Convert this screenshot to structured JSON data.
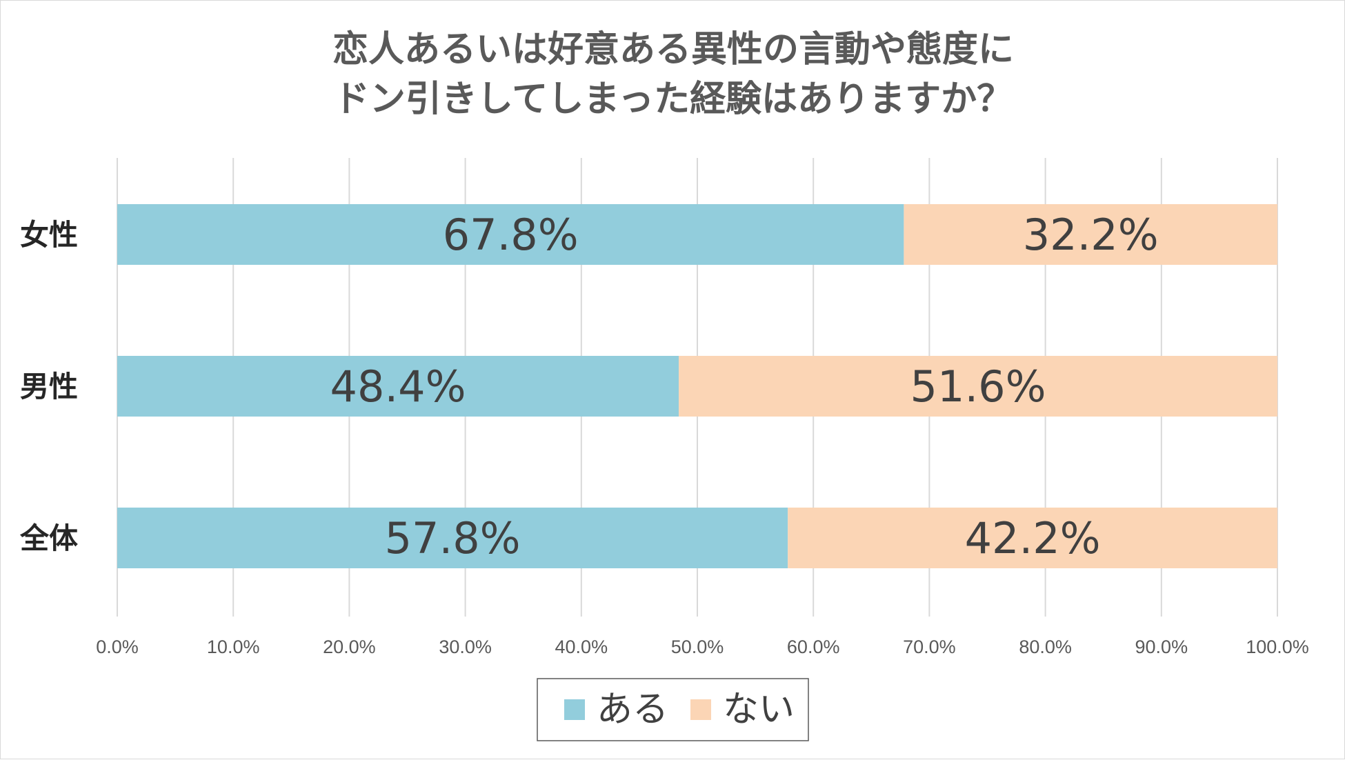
{
  "chart_data": {
    "type": "bar",
    "orientation": "horizontal",
    "stacked": true,
    "title_lines": [
      "恋人あるいは好意ある異性の言動や態度に",
      "ドン引きしてしまった経験はありますか？"
    ],
    "categories": [
      "女性",
      "男性",
      "全体"
    ],
    "series": [
      {
        "name": "ある",
        "color": "#92cddc",
        "values": [
          67.8,
          48.4,
          57.8
        ],
        "labels": [
          "67.8%",
          "48.4%",
          "57.8%"
        ]
      },
      {
        "name": "ない",
        "color": "#fbd5b5",
        "values": [
          32.2,
          51.6,
          42.2
        ],
        "labels": [
          "32.2%",
          "51.6%",
          "42.2%"
        ]
      }
    ],
    "xlim": [
      0,
      100
    ],
    "xticks": [
      0,
      10,
      20,
      30,
      40,
      50,
      60,
      70,
      80,
      90,
      100
    ],
    "xtick_labels": [
      "0.0%",
      "10.0%",
      "20.0%",
      "30.0%",
      "40.0%",
      "50.0%",
      "60.0%",
      "70.0%",
      "80.0%",
      "90.0%",
      "100.0%"
    ],
    "grid": "vertical",
    "legend_position": "bottom"
  }
}
